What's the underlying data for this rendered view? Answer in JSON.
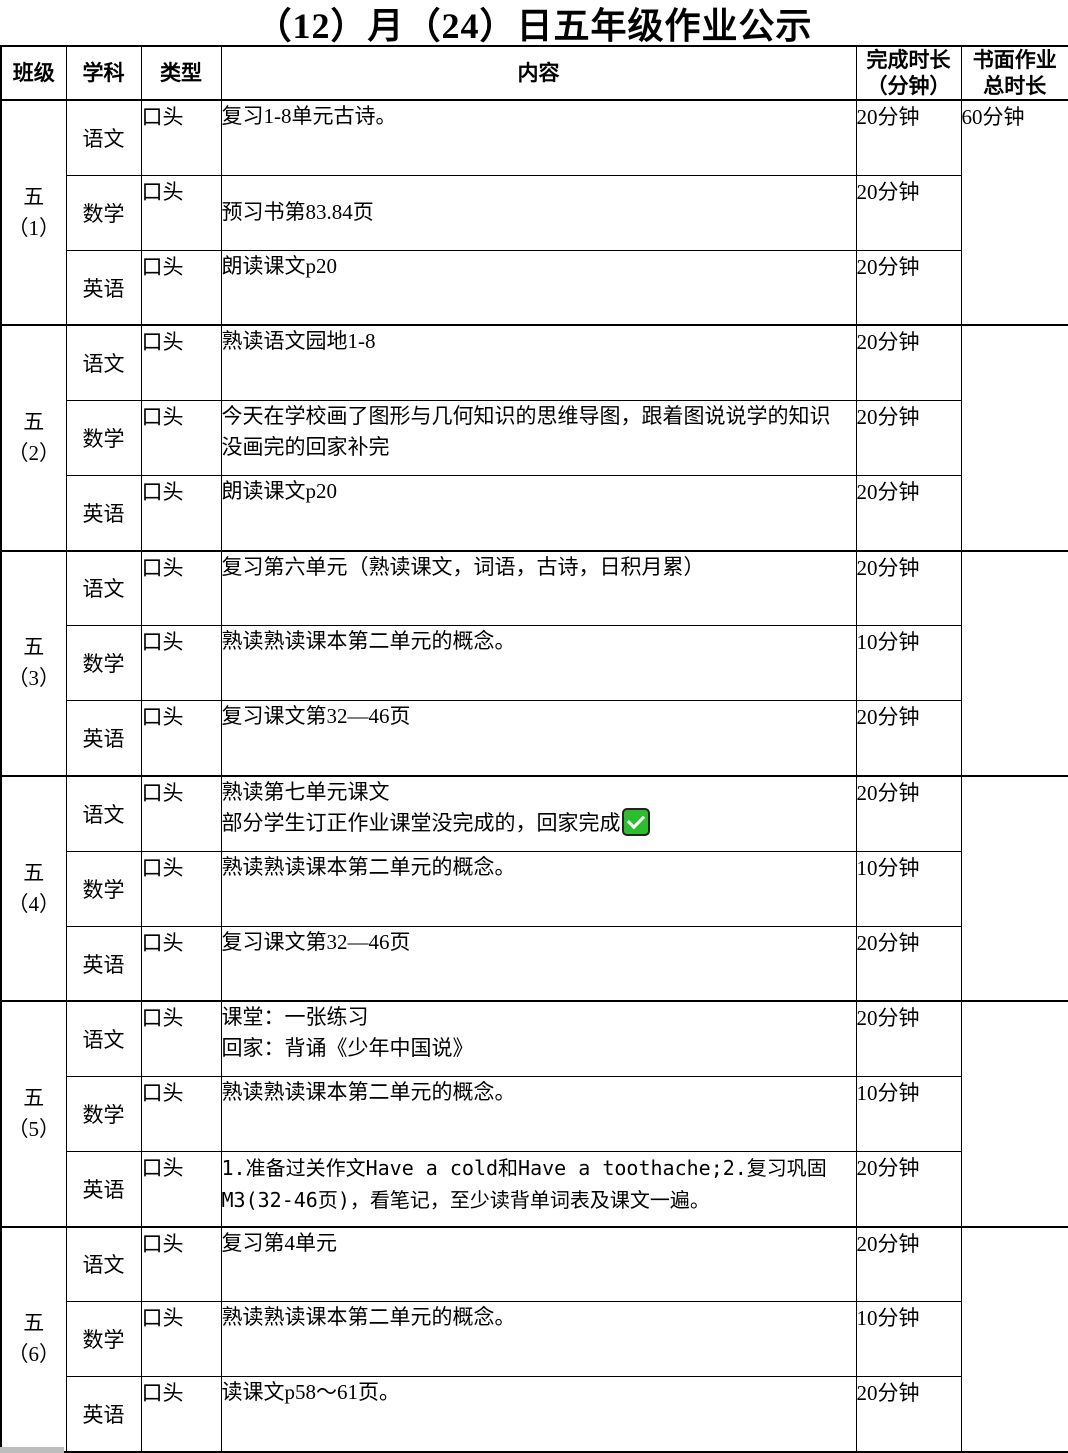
{
  "title": "（12）月（24）日五年级作业公示",
  "colors": {
    "check_green": "#2ebd2f",
    "border_black": "#000000"
  },
  "icons": {
    "check": "✅"
  },
  "table": {
    "headers": {
      "class": "班级",
      "subject": "学科",
      "type": "类型",
      "content": "内容",
      "duration": "完成时长\n（分钟）",
      "total": "书面作业\n总时长"
    },
    "blocks": [
      {
        "class_name": "五\n（1）",
        "total": "60分钟",
        "rows": [
          {
            "subject": "语文",
            "type": "口头",
            "content": "复习1-8单元古诗。",
            "duration": "20分钟"
          },
          {
            "subject": "数学",
            "type": "口头",
            "content": "预习书第83.84页",
            "duration": "20分钟"
          },
          {
            "subject": "英语",
            "type": "口头",
            "content": "朗读课文p20",
            "duration": "20分钟"
          }
        ]
      },
      {
        "class_name": "五\n（2）",
        "total": "",
        "rows": [
          {
            "subject": "语文",
            "type": "口头",
            "content": "熟读语文园地1-8",
            "duration": "20分钟"
          },
          {
            "subject": "数学",
            "type": "口头",
            "content": "今天在学校画了图形与几何知识的思维导图，跟着图说说学的知识\n没画完的回家补完",
            "duration": "20分钟"
          },
          {
            "subject": "英语",
            "type": "口头",
            "content": "朗读课文p20",
            "duration": "20分钟"
          }
        ]
      },
      {
        "class_name": "五\n（3）",
        "total": "",
        "rows": [
          {
            "subject": "语文",
            "type": "口头",
            "content": "复习第六单元（熟读课文，词语，古诗，日积月累）",
            "duration": "20分钟"
          },
          {
            "subject": "数学",
            "type": "口头",
            "content": "熟读熟读课本第二单元的概念。",
            "duration": "10分钟"
          },
          {
            "subject": "英语",
            "type": "口头",
            "content": "复习课文第32—46页",
            "duration": "20分钟"
          }
        ]
      },
      {
        "class_name": "五\n（4）",
        "total": "",
        "rows": [
          {
            "subject": "语文",
            "type": "口头",
            "content": "熟读第七单元课文\n部分学生订正作业课堂没完成的，回家完成✅",
            "duration": "20分钟"
          },
          {
            "subject": "数学",
            "type": "口头",
            "content": "熟读熟读课本第二单元的概念。",
            "duration": "10分钟"
          },
          {
            "subject": "英语",
            "type": "口头",
            "content": "复习课文第32—46页",
            "duration": "20分钟"
          }
        ]
      },
      {
        "class_name": "五\n（5）",
        "total": "",
        "rows": [
          {
            "subject": "语文",
            "type": "口头",
            "content": "课堂：一张练习\n回家：背诵《少年中国说》",
            "duration": "20分钟"
          },
          {
            "subject": "数学",
            "type": "口头",
            "content": "熟读熟读课本第二单元的概念。",
            "duration": "10分钟"
          },
          {
            "subject": "英语",
            "type": "口头",
            "content": "1.准备过关作文Have a cold和Have a toothache;2.复习巩固M3(32-46页)，看笔记，至少读背单词表及课文一遍。",
            "duration": "20分钟"
          }
        ]
      },
      {
        "class_name": "五\n（6）",
        "total": "",
        "rows": [
          {
            "subject": "语文",
            "type": "口头",
            "content": "复习第4单元",
            "duration": "20分钟"
          },
          {
            "subject": "数学",
            "type": "口头",
            "content": "熟读熟读课本第二单元的概念。",
            "duration": "10分钟"
          },
          {
            "subject": "英语",
            "type": "口头",
            "content": "读课文p58～61页。",
            "duration": "20分钟"
          }
        ]
      }
    ]
  }
}
